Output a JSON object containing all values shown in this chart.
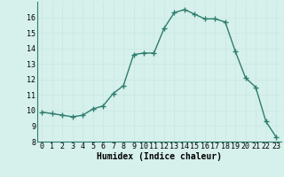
{
  "x": [
    0,
    1,
    2,
    3,
    4,
    5,
    6,
    7,
    8,
    9,
    10,
    11,
    12,
    13,
    14,
    15,
    16,
    17,
    18,
    19,
    20,
    21,
    22,
    23
  ],
  "y": [
    9.9,
    9.8,
    9.7,
    9.6,
    9.7,
    10.1,
    10.3,
    11.1,
    11.6,
    13.6,
    13.7,
    13.7,
    15.3,
    16.3,
    16.5,
    16.2,
    15.9,
    15.9,
    15.7,
    13.8,
    12.1,
    11.5,
    9.3,
    8.3
  ],
  "line_color": "#2d7d6e",
  "marker": "+",
  "marker_size": 4,
  "line_width": 1.0,
  "xlabel": "Humidex (Indice chaleur)",
  "xlabel_fontsize": 7,
  "ylim": [
    8,
    17
  ],
  "xlim": [
    -0.5,
    23.5
  ],
  "yticks": [
    8,
    9,
    10,
    11,
    12,
    13,
    14,
    15,
    16
  ],
  "xticks": [
    0,
    1,
    2,
    3,
    4,
    5,
    6,
    7,
    8,
    9,
    10,
    11,
    12,
    13,
    14,
    15,
    16,
    17,
    18,
    19,
    20,
    21,
    22,
    23
  ],
  "grid_color": "#c8e8e0",
  "bg_color": "#d6f0ec",
  "tick_fontsize": 6,
  "spine_color": "#2d7d6e"
}
